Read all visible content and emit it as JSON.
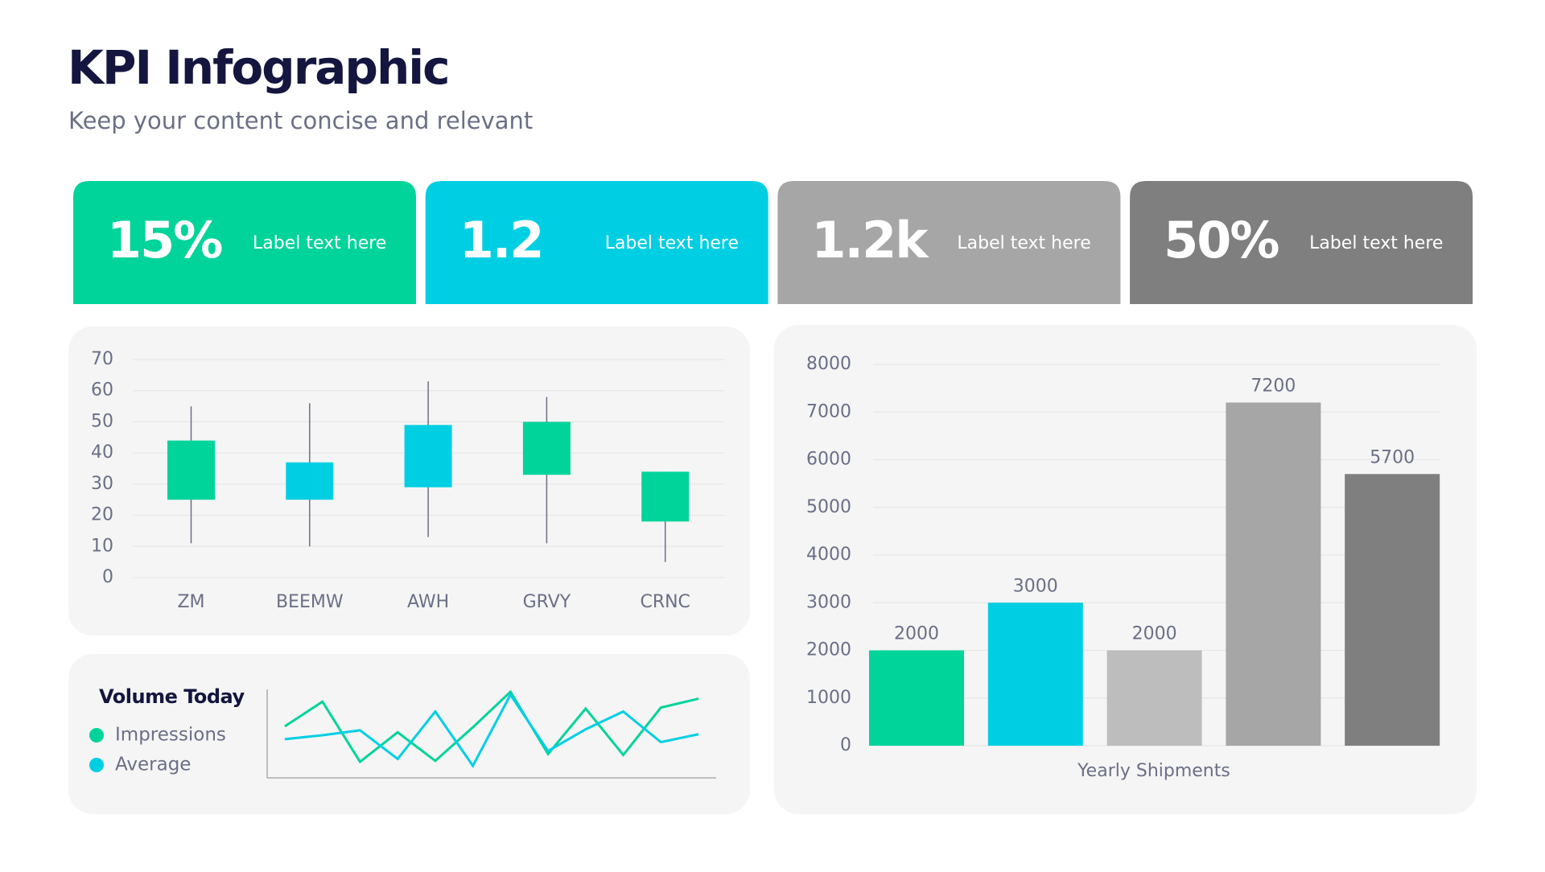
{
  "header": {
    "title": "KPI Infographic",
    "subtitle": "Keep your content concise and relevant"
  },
  "kpis": [
    {
      "value": "15%",
      "label": "Label text here",
      "color": "#00d49a"
    },
    {
      "value": "1.2",
      "label": "Label text here",
      "color": "#00cfe3"
    },
    {
      "value": "1.2k",
      "label": "Label text here",
      "color": "#a6a6a6"
    },
    {
      "value": "50%",
      "label": "Label text here",
      "color": "#7f7f7f"
    }
  ],
  "chart_data": [
    {
      "type": "candlestick",
      "categories": [
        "ZM",
        "BEEMW",
        "AWH",
        "GRVY",
        "CRNC"
      ],
      "open": [
        25,
        37,
        49,
        33,
        18
      ],
      "high": [
        55,
        56,
        63,
        58,
        34
      ],
      "low": [
        11,
        10,
        13,
        11,
        5
      ],
      "close": [
        44,
        25,
        29,
        50,
        34
      ],
      "colors": [
        "#00d49a",
        "#00cfe3",
        "#00cfe3",
        "#00d49a",
        "#00d49a"
      ],
      "ylim": [
        0,
        70
      ],
      "yticks": [
        0,
        10,
        20,
        30,
        40,
        50,
        60,
        70
      ],
      "grid": true
    },
    {
      "type": "line",
      "title": "Volume Today",
      "series": [
        {
          "name": "Impressions",
          "color": "#00d49a",
          "values": [
            63,
            88,
            27,
            57,
            28,
            62,
            98,
            35,
            81,
            34,
            82,
            91
          ]
        },
        {
          "name": "Average",
          "color": "#00cfe3",
          "values": [
            50,
            54,
            59,
            30,
            78,
            23,
            95,
            38,
            60,
            78,
            47,
            55
          ]
        }
      ]
    },
    {
      "type": "bar",
      "xlabel": "Yearly Shipments",
      "categories": [
        null,
        null,
        null,
        null,
        null
      ],
      "values": [
        2000,
        3000,
        2000,
        7200,
        5700
      ],
      "colors": [
        "#00d49a",
        "#00cfe3",
        "#bdbdbd",
        "#a6a6a6",
        "#7f7f7f"
      ],
      "ylim": [
        0,
        8000
      ],
      "yticks": [
        0,
        1000,
        2000,
        3000,
        4000,
        5000,
        6000,
        7000,
        8000
      ],
      "grid": true
    }
  ]
}
